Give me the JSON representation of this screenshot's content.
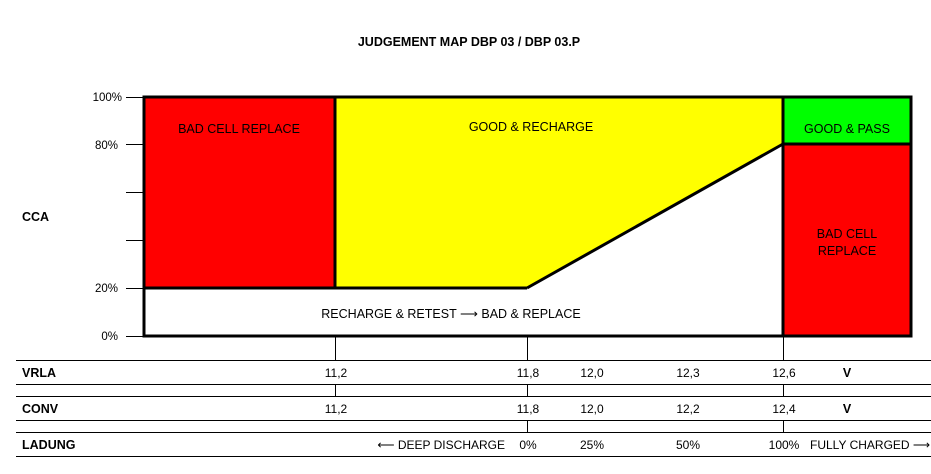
{
  "title": "JUDGEMENT MAP DBP 03 / DBP 03.P",
  "y_axis": {
    "label": "CCA",
    "ticks": [
      "100%",
      "80%",
      "20%",
      "0%"
    ]
  },
  "zones": {
    "bad_cell_left": "BAD CELL REPLACE",
    "good_recharge": "GOOD & RECHARGE",
    "good_pass": "GOOD & PASS",
    "bad_cell_right_line1": "BAD CELL",
    "bad_cell_right_line2": "REPLACE",
    "recharge_retest": "RECHARGE & RETEST ⟶ BAD & REPLACE"
  },
  "colors": {
    "red": "#ff0000",
    "yellow": "#ffff00",
    "green": "#00ff00",
    "white": "#ffffff"
  },
  "rows": {
    "vrla": {
      "label": "VRLA",
      "values": [
        "11,2",
        "11,8",
        "12,0",
        "12,3",
        "12,6"
      ],
      "unit": "V"
    },
    "conv": {
      "label": "CONV",
      "values": [
        "11,2",
        "11,8",
        "12,0",
        "12,2",
        "12,4"
      ],
      "unit": "V"
    },
    "ladung": {
      "label": "LADUNG",
      "left_note": "⟵ DEEP DISCHARGE",
      "values": [
        "0%",
        "25%",
        "50%",
        "100%"
      ],
      "right_note": "FULLY CHARGED ⟶"
    }
  },
  "chart_data": {
    "type": "judgement-map",
    "title": "JUDGEMENT MAP DBP 03 / DBP 03.P",
    "y_label": "CCA",
    "y_unit": "%",
    "y_ticks": [
      100,
      80,
      20,
      0
    ],
    "regions": [
      {
        "label": "BAD CELL REPLACE",
        "color": "red",
        "cca_range": [
          20,
          100
        ],
        "vrla_range": [
          "< 11,2"
        ]
      },
      {
        "label": "GOOD & RECHARGE",
        "color": "yellow",
        "cca_range": [
          20,
          100
        ],
        "vrla_range": [
          "11,2",
          "12,6"
        ],
        "lower_boundary_cca": [
          [
            11.2,
            20
          ],
          [
            11.8,
            20
          ],
          [
            12.6,
            80
          ]
        ]
      },
      {
        "label": "GOOD & PASS",
        "color": "green",
        "cca_range": [
          80,
          100
        ],
        "vrla_range": [
          "> 12,6"
        ]
      },
      {
        "label": "BAD CELL REPLACE",
        "color": "red",
        "cca_range": [
          0,
          80
        ],
        "vrla_range": [
          "> 12,6"
        ]
      },
      {
        "label": "RECHARGE & RETEST ⟶ BAD & REPLACE",
        "color": "white",
        "cca_range": [
          0,
          20
        ]
      }
    ]
  }
}
